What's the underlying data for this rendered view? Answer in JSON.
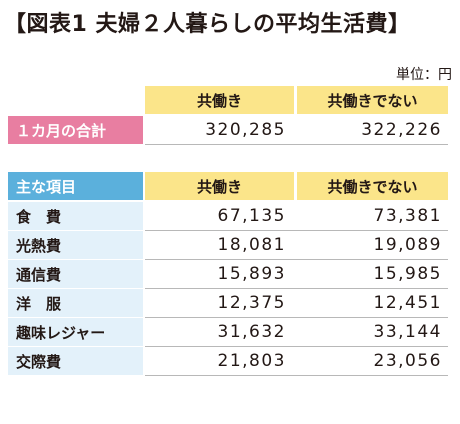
{
  "title": "【図表1 夫婦２人暮らしの平均生活費】",
  "unit": "単位：円",
  "columns": [
    "共働き",
    "共働きでない"
  ],
  "total": {
    "label": "１カ月の合計",
    "values": [
      "320,285",
      "322,226"
    ]
  },
  "breakdown_header": "主な項目",
  "items": [
    {
      "label": "食　費",
      "values": [
        "67,135",
        "73,381"
      ]
    },
    {
      "label": "光熱費",
      "values": [
        "18,081",
        "19,089"
      ]
    },
    {
      "label": "通信費",
      "values": [
        "15,893",
        "15,985"
      ]
    },
    {
      "label": "洋　服",
      "values": [
        "12,375",
        "12,451"
      ]
    },
    {
      "label": "趣味レジャー",
      "values": [
        "31,632",
        "33,144"
      ]
    },
    {
      "label": "交際費",
      "values": [
        "21,803",
        "23,056"
      ]
    }
  ],
  "colors": {
    "header_yellow": "#fbe58a",
    "total_pink": "#e87ea1",
    "section_blue": "#5bb0dc",
    "row_light_blue": "#e3f1fa"
  }
}
